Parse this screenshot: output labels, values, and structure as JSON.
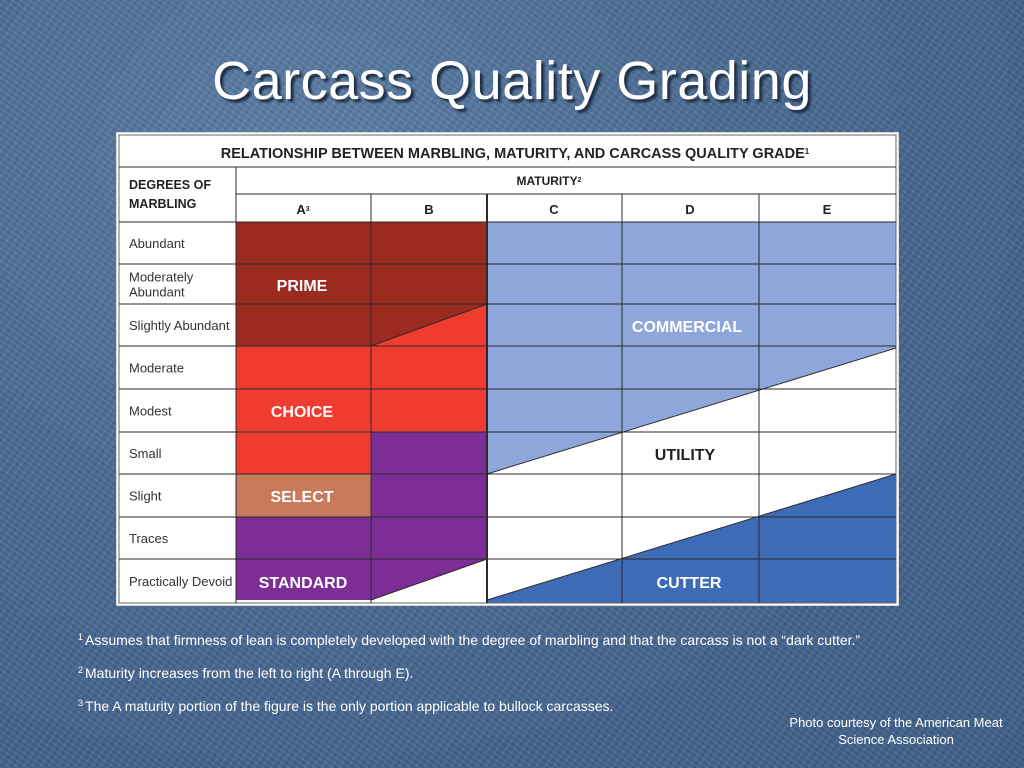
{
  "slide": {
    "title": "Carcass Quality Grading"
  },
  "figure": {
    "heading": "RELATIONSHIP BETWEEN MARBLING, MATURITY, AND CARCASS QUALITY GRADE",
    "heading_sup": "1",
    "marbling_header_line1": "DEGREES OF",
    "marbling_header_line2": "MARBLING",
    "maturity_header": "MATURITY",
    "maturity_header_sup": "2",
    "maturity_columns": [
      {
        "label": "A",
        "sup": "3"
      },
      {
        "label": "B",
        "sup": ""
      },
      {
        "label": "C",
        "sup": ""
      },
      {
        "label": "D",
        "sup": ""
      },
      {
        "label": "E",
        "sup": ""
      }
    ],
    "marbling_rows": [
      [
        "Abundant"
      ],
      [
        "Moderately",
        "Abundant"
      ],
      [
        "Slightly Abundant"
      ],
      [
        "Moderate"
      ],
      [
        "Modest"
      ],
      [
        "Small"
      ],
      [
        "Slight"
      ],
      [
        "Traces"
      ],
      [
        "Practically Devoid"
      ]
    ],
    "grade_labels": {
      "prime": "PRIME",
      "choice": "CHOICE",
      "select": "SELECT",
      "standard": "STANDARD",
      "commercial": "COMMERCIAL",
      "utility": "UTILITY",
      "cutter": "CUTTER"
    },
    "grade_colors": {
      "prime": "#9b2a20",
      "choice": "#f03c30",
      "select": "#c77a5c",
      "standard": "#7c2e96",
      "commercial": "#8ea6d9",
      "utility": "#ffffff",
      "cutter": "#3d6bb5"
    }
  },
  "footnotes": [
    {
      "num": "1",
      "text": "Assumes that firmness of lean is completely developed with the degree of marbling and that the carcass is not a “dark cutter.”"
    },
    {
      "num": "2",
      "text": "Maturity increases from the left to right (A through E)."
    },
    {
      "num": "3",
      "text": "The A maturity portion of the figure is the only portion applicable to bullock carcasses."
    }
  ],
  "credit": {
    "line1": "Photo courtesy of the American Meat",
    "line2": "Science Association"
  }
}
